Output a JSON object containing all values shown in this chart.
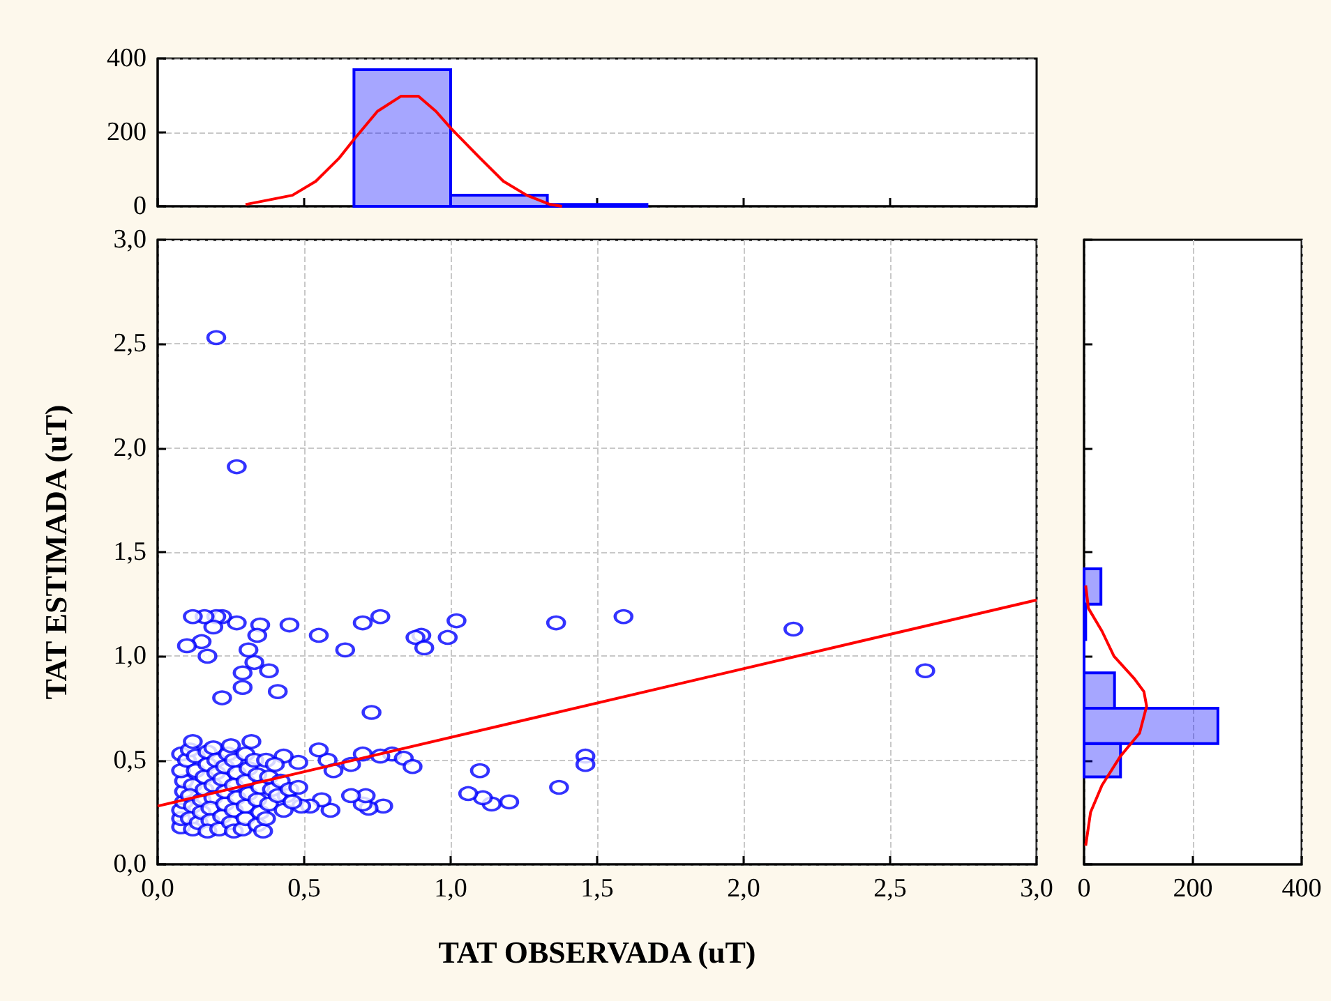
{
  "chart_data": [
    {
      "type": "histogram",
      "xlim": [
        0,
        3
      ],
      "xticks": [
        0,
        0.5,
        1,
        1.5,
        2,
        2.5,
        3
      ],
      "ylim": [
        0,
        400
      ],
      "yticks": [
        0,
        200,
        400
      ],
      "grid": "y",
      "tick_labels": "y",
      "series": [
        {
          "color": "#0000ff",
          "bins": [
            0.67,
            1.0,
            1.33,
            1.67
          ],
          "values": [
            370,
            30,
            5
          ]
        },
        {
          "type": "line",
          "color": "#ff0000",
          "x": [
            0.3,
            0.46,
            0.54,
            0.62,
            0.67,
            0.75,
            0.83,
            0.89,
            0.95,
            1.0,
            1.1,
            1.18,
            1.26,
            1.34,
            1.38
          ],
          "values": [
            5,
            30,
            68,
            131,
            181,
            257,
            298,
            298,
            257,
            212,
            131,
            68,
            30,
            5,
            0
          ]
        }
      ]
    },
    {
      "type": "scatter",
      "xlabel": "TAT OBSERVADA (uT)",
      "ylabel": "TAT ESTIMADA (uT)",
      "xlim": [
        0,
        3
      ],
      "ylim": [
        0,
        3
      ],
      "xticks": [
        {
          "value": 0,
          "label": "0,0"
        },
        {
          "value": 0.5,
          "label": "0,5"
        },
        {
          "value": 1,
          "label": "1,0"
        },
        {
          "value": 1.5,
          "label": "1,5"
        },
        {
          "value": 2,
          "label": "2,0"
        },
        {
          "value": 2.5,
          "label": "2,5"
        },
        {
          "value": 3,
          "label": "3,0"
        }
      ],
      "yticks": [
        {
          "value": 0,
          "label": "0,0"
        },
        {
          "value": 0.5,
          "label": "0,5"
        },
        {
          "value": 1,
          "label": "1,0"
        },
        {
          "value": 1.5,
          "label": "1,5"
        },
        {
          "value": 2,
          "label": "2,0"
        },
        {
          "value": 2.5,
          "label": "2,5"
        },
        {
          "value": 3,
          "label": "3,0"
        }
      ],
      "grid": true,
      "series": [
        {
          "color": "#0000ff",
          "marker": "circle",
          "x": [
            0.2,
            0.27,
            2.62,
            2.17,
            1.59,
            1.36,
            1.46,
            1.46,
            1.37,
            1.2,
            1.14,
            1.11,
            1.06,
            1.1,
            1.02,
            0.99,
            0.9,
            0.88,
            0.91,
            0.76,
            0.7,
            0.64,
            0.55,
            0.45,
            0.41,
            0.38,
            0.35,
            0.34,
            0.33,
            0.31,
            0.29,
            0.29,
            0.22,
            0.27,
            0.22,
            0.2,
            0.19,
            0.16,
            0.12,
            0.15,
            0.1,
            0.17,
            0.73,
            0.8,
            0.84,
            0.87,
            0.76,
            0.7,
            0.66,
            0.58,
            0.55,
            0.48,
            0.43,
            0.77,
            0.72,
            0.7,
            0.71,
            0.66,
            0.59,
            0.56,
            0.52,
            0.49,
            0.44,
            0.6,
            0.08,
            0.08,
            0.08,
            0.09,
            0.09,
            0.09,
            0.08,
            0.08,
            0.1,
            0.11,
            0.12,
            0.13,
            0.13,
            0.12,
            0.11,
            0.12,
            0.11,
            0.12,
            0.14,
            0.15,
            0.15,
            0.16,
            0.16,
            0.17,
            0.17,
            0.19,
            0.2,
            0.2,
            0.19,
            0.19,
            0.18,
            0.18,
            0.17,
            0.21,
            0.22,
            0.23,
            0.23,
            0.22,
            0.23,
            0.24,
            0.25,
            0.26,
            0.27,
            0.26,
            0.27,
            0.26,
            0.25,
            0.26,
            0.29,
            0.3,
            0.3,
            0.31,
            0.3,
            0.31,
            0.3,
            0.32,
            0.33,
            0.34,
            0.35,
            0.34,
            0.35,
            0.34,
            0.36,
            0.37,
            0.38,
            0.39,
            0.38,
            0.37,
            0.4,
            0.42,
            0.41,
            0.43,
            0.45,
            0.46,
            0.48
          ],
          "values": [
            2.53,
            1.91,
            0.93,
            1.13,
            1.19,
            1.16,
            0.52,
            0.48,
            0.37,
            0.3,
            0.29,
            0.32,
            0.34,
            0.45,
            1.17,
            1.09,
            1.1,
            1.09,
            1.04,
            1.19,
            1.16,
            1.03,
            1.1,
            1.15,
            0.83,
            0.93,
            1.15,
            1.1,
            0.97,
            1.03,
            0.92,
            0.85,
            0.8,
            1.16,
            1.19,
            1.19,
            1.14,
            1.19,
            1.19,
            1.07,
            1.05,
            1.0,
            0.73,
            0.53,
            0.51,
            0.47,
            0.52,
            0.53,
            0.48,
            0.5,
            0.55,
            0.49,
            0.52,
            0.28,
            0.27,
            0.29,
            0.33,
            0.33,
            0.26,
            0.31,
            0.28,
            0.28,
            0.33,
            0.45,
            0.18,
            0.22,
            0.26,
            0.3,
            0.35,
            0.4,
            0.45,
            0.53,
            0.5,
            0.55,
            0.59,
            0.52,
            0.45,
            0.38,
            0.33,
            0.28,
            0.22,
            0.17,
            0.2,
            0.25,
            0.31,
            0.36,
            0.42,
            0.48,
            0.54,
            0.56,
            0.5,
            0.44,
            0.38,
            0.32,
            0.27,
            0.21,
            0.16,
            0.17,
            0.23,
            0.29,
            0.35,
            0.41,
            0.47,
            0.53,
            0.57,
            0.5,
            0.44,
            0.38,
            0.32,
            0.26,
            0.2,
            0.16,
            0.17,
            0.22,
            0.28,
            0.34,
            0.4,
            0.46,
            0.53,
            0.59,
            0.5,
            0.43,
            0.37,
            0.31,
            0.25,
            0.19,
            0.16,
            0.22,
            0.29,
            0.36,
            0.42,
            0.5,
            0.48,
            0.4,
            0.33,
            0.26,
            0.36,
            0.3,
            0.37
          ]
        },
        {
          "type": "line",
          "color": "#ff0000",
          "x": [
            0,
            3
          ],
          "values": [
            0.28,
            1.27
          ]
        }
      ]
    },
    {
      "type": "histogram",
      "orientation": "horizontal",
      "xlim": [
        0,
        400
      ],
      "xticks": [
        0,
        200,
        400
      ],
      "ylim": [
        0,
        3
      ],
      "yticks": [
        0,
        0.5,
        1,
        1.5,
        2,
        2.5,
        3
      ],
      "grid": "x",
      "tick_labels": "x",
      "series": [
        {
          "color": "#0000ff",
          "bins": [
            0.42,
            0.58,
            0.75,
            0.92,
            1.08,
            1.25,
            1.42
          ],
          "values": [
            67,
            246,
            56,
            0,
            3,
            31
          ]
        },
        {
          "type": "line",
          "color": "#ff0000",
          "x": [
            0.09,
            0.25,
            0.38,
            0.52,
            0.63,
            0.76,
            0.83,
            0.89,
            1.0,
            1.12,
            1.23,
            1.34
          ],
          "values": [
            3,
            12,
            33,
            67,
            102,
            115,
            110,
            93,
            55,
            33,
            8,
            3
          ]
        }
      ]
    }
  ]
}
